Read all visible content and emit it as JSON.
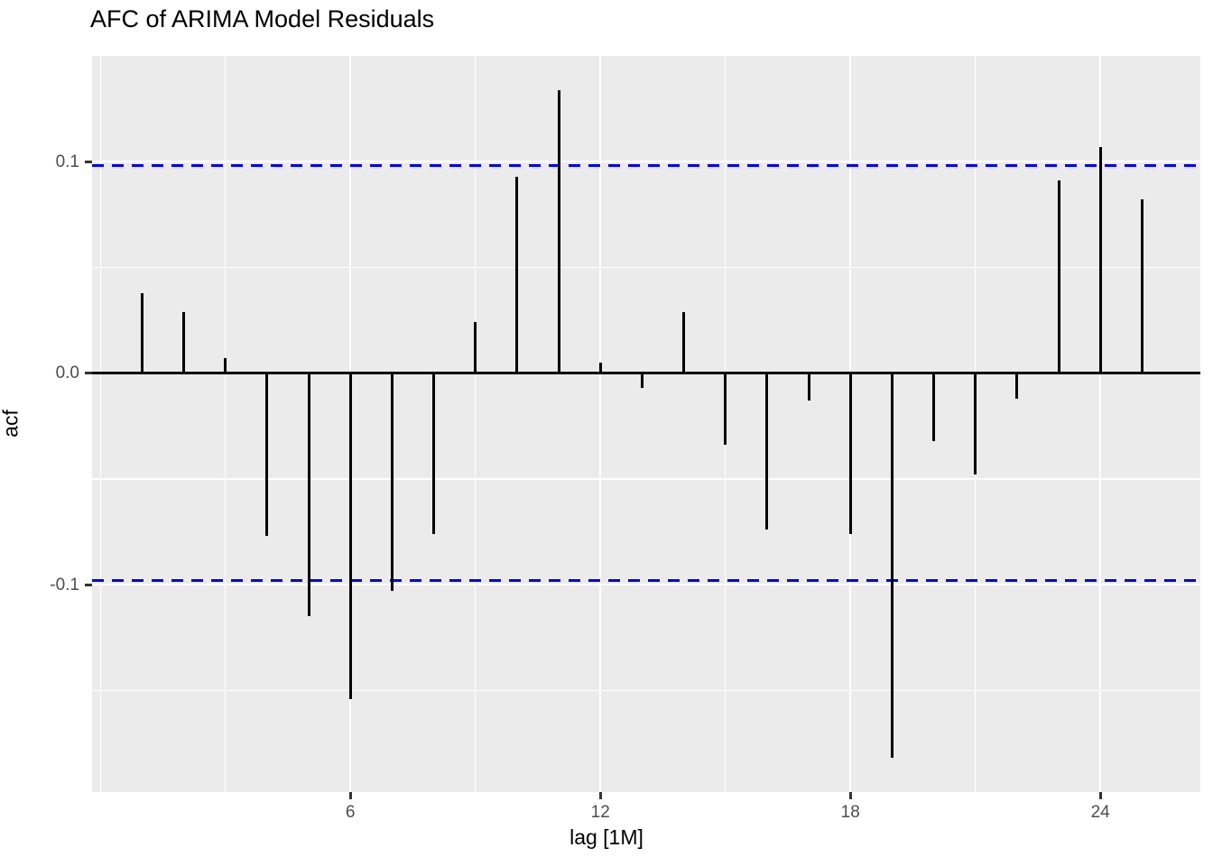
{
  "title": "AFC of ARIMA Model Residuals",
  "chart_data": {
    "type": "bar",
    "subtype": "acf-spike-plot",
    "title": "AFC of ARIMA Model Residuals",
    "xlabel": "lag [1M]",
    "ylabel": "acf",
    "x": [
      1,
      2,
      3,
      4,
      5,
      6,
      7,
      8,
      9,
      10,
      11,
      12,
      13,
      14,
      15,
      16,
      17,
      18,
      19,
      20,
      21,
      22,
      23,
      24,
      25
    ],
    "values": [
      0.038,
      0.029,
      0.007,
      -0.077,
      -0.115,
      -0.154,
      -0.103,
      -0.076,
      0.024,
      0.093,
      0.134,
      0.005,
      -0.007,
      0.029,
      -0.034,
      -0.074,
      -0.013,
      -0.076,
      -0.182,
      -0.032,
      -0.048,
      -0.012,
      0.091,
      0.107,
      0.082
    ],
    "confidence_bound": 0.098,
    "xlim": [
      -0.2,
      26.4
    ],
    "ylim": [
      -0.198,
      0.15
    ],
    "x_major_ticks": [
      6,
      12,
      18,
      24
    ],
    "x_major_labels": [
      "6",
      "12",
      "18",
      "24"
    ],
    "x_minor_ticks": [
      0,
      3,
      9,
      15,
      21
    ],
    "y_major_ticks": [
      0.1,
      0.0,
      -0.1
    ],
    "y_major_labels": [
      "0.1",
      "0.0",
      "-0.1"
    ],
    "y_minor_ticks": [
      0.05,
      -0.05,
      -0.15
    ],
    "grid": true,
    "legend_position": "none",
    "colors": {
      "panel_background": "#EBEBEB",
      "gridline": "#FFFFFF",
      "spike": "#000000",
      "zero_line": "#000000",
      "confidence_line": "#0000EE",
      "tick_label": "#4D4D4D",
      "tick_mark": "#333333",
      "text": "#000000",
      "figure_background": "#FFFFFF"
    }
  }
}
